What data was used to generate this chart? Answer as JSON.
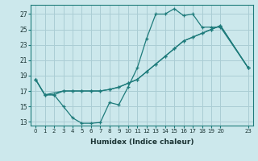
{
  "xlabel": "Humidex (Indice chaleur)",
  "background_color": "#cce8ec",
  "grid_color": "#aacdd4",
  "line_color": "#1e7b7b",
  "xlim": [
    -0.5,
    23.5
  ],
  "ylim": [
    12.5,
    28.2
  ],
  "xticks": [
    0,
    1,
    2,
    3,
    4,
    5,
    6,
    7,
    8,
    9,
    10,
    11,
    12,
    13,
    14,
    15,
    16,
    17,
    18,
    19,
    20,
    23
  ],
  "yticks": [
    13,
    15,
    17,
    19,
    21,
    23,
    25,
    27
  ],
  "line1_x": [
    0,
    1,
    2,
    3,
    4,
    5,
    6,
    7,
    8,
    9,
    10,
    11,
    12,
    13,
    14,
    15,
    16,
    17,
    18,
    19,
    20,
    23
  ],
  "line1_y": [
    18.5,
    16.5,
    16.5,
    15.0,
    13.5,
    12.8,
    12.8,
    12.9,
    15.5,
    15.2,
    17.5,
    20.0,
    23.8,
    27.0,
    27.0,
    27.7,
    26.8,
    27.0,
    25.3,
    25.3,
    25.3,
    20.0
  ],
  "line2_x": [
    0,
    1,
    3,
    4,
    5,
    6,
    7,
    8,
    9,
    10,
    11,
    12,
    13,
    14,
    15,
    16,
    17,
    18,
    19,
    20,
    23
  ],
  "line2_y": [
    18.5,
    16.5,
    17.0,
    17.0,
    17.0,
    17.0,
    17.0,
    17.2,
    17.5,
    18.0,
    18.5,
    19.5,
    20.5,
    21.5,
    22.5,
    23.5,
    24.0,
    24.5,
    25.0,
    25.5,
    20.0
  ],
  "line3_x": [
    0,
    1,
    2,
    3,
    4,
    5,
    6,
    7,
    8,
    9,
    10,
    11,
    12,
    13,
    14,
    15,
    16,
    17,
    18,
    19,
    20,
    23
  ],
  "line3_y": [
    18.5,
    16.5,
    16.5,
    17.0,
    17.0,
    17.0,
    17.0,
    17.0,
    17.2,
    17.5,
    18.0,
    18.5,
    19.5,
    20.5,
    21.5,
    22.5,
    23.5,
    24.0,
    24.5,
    25.0,
    25.5,
    20.0
  ]
}
